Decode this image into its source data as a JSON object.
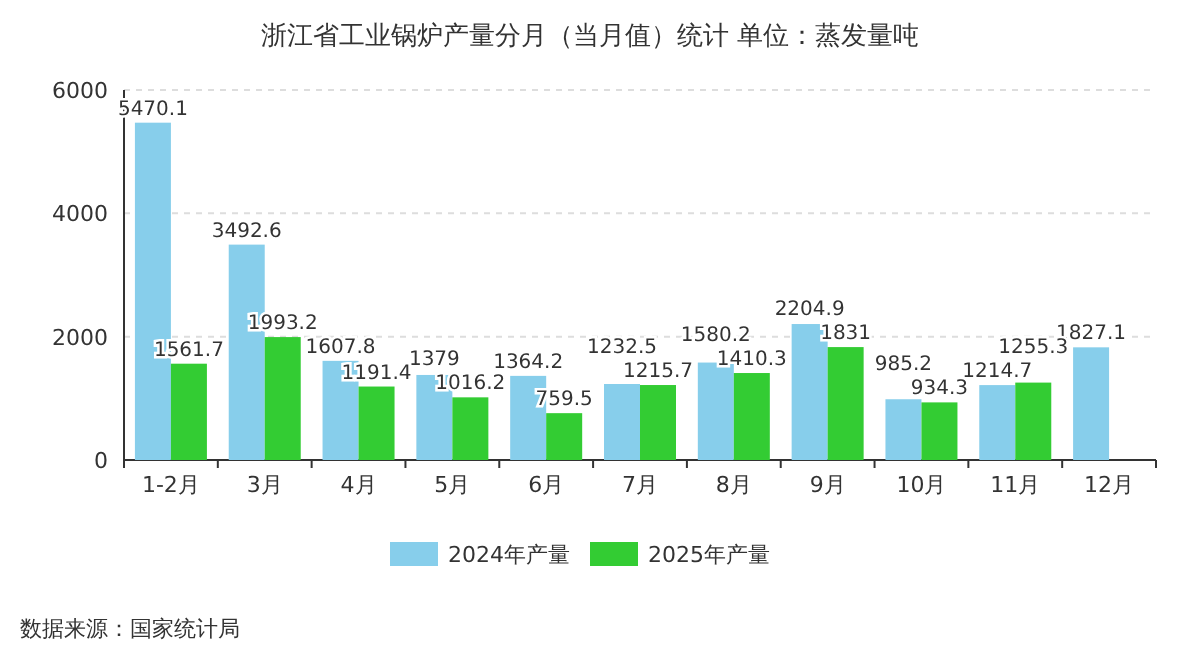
{
  "chart_data": {
    "type": "bar",
    "title": "浙江省工业锅炉产量分月（当月值）统计 单位：蒸发量吨",
    "categories": [
      "1-2月",
      "3月",
      "4月",
      "5月",
      "6月",
      "7月",
      "8月",
      "9月",
      "10月",
      "11月",
      "12月"
    ],
    "series": [
      {
        "name": "2024年产量",
        "color": "#87ceeb",
        "values": [
          5470.1,
          3492.6,
          1607.8,
          1379,
          1364.2,
          1232.5,
          1580.2,
          2204.9,
          985.2,
          1214.7,
          1827.1
        ]
      },
      {
        "name": "2025年产量",
        "color": "#33cc33",
        "values": [
          1561.7,
          1993.2,
          1191.4,
          1016.2,
          759.5,
          1215.7,
          1410.3,
          1831,
          934.3,
          1255.3,
          null
        ]
      }
    ],
    "ylim": [
      0,
      6000
    ],
    "yticks": [
      0,
      2000,
      4000,
      6000
    ],
    "grid": "y",
    "legend": "bottom",
    "data_labels": true,
    "annotations": [
      "数据来源：国家统计局"
    ]
  }
}
